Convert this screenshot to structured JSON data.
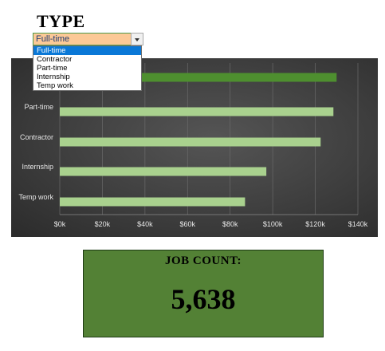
{
  "filter": {
    "title": "TYPE",
    "selected_value": "Full-time",
    "options": [
      "Full-time",
      "Contractor",
      "Part-time",
      "Internship",
      "Temp work"
    ]
  },
  "colors": {
    "chart_background": "#3e3e3e",
    "bar_highlight": "#4e8f2f",
    "bar_normal": "#a9d18e",
    "job_box": "#538135",
    "dropdown_selected": "#0a78d7",
    "combo_fill": "#fcc996"
  },
  "chart_data": {
    "type": "bar",
    "orientation": "horizontal",
    "categories": [
      "Full-time",
      "Part-time",
      "Contractor",
      "Internship",
      "Temp work"
    ],
    "visible_category_labels": [
      "Ful",
      "Part-time",
      "Contractor",
      "Internship",
      "Temp work"
    ],
    "values": [
      130000,
      128500,
      122500,
      97000,
      87000
    ],
    "highlighted_category": "Full-time",
    "x_ticks": [
      "$0k",
      "$20k",
      "$40k",
      "$60k",
      "$80k",
      "$100k",
      "$120k",
      "$140k"
    ],
    "xlim": [
      0,
      140000
    ],
    "grid": true,
    "title": "",
    "xlabel": "",
    "ylabel": ""
  },
  "job_count": {
    "label": "JOB COUNT:",
    "value": "5,638"
  },
  "icons": {
    "dropdown": "chevron-down-icon"
  }
}
